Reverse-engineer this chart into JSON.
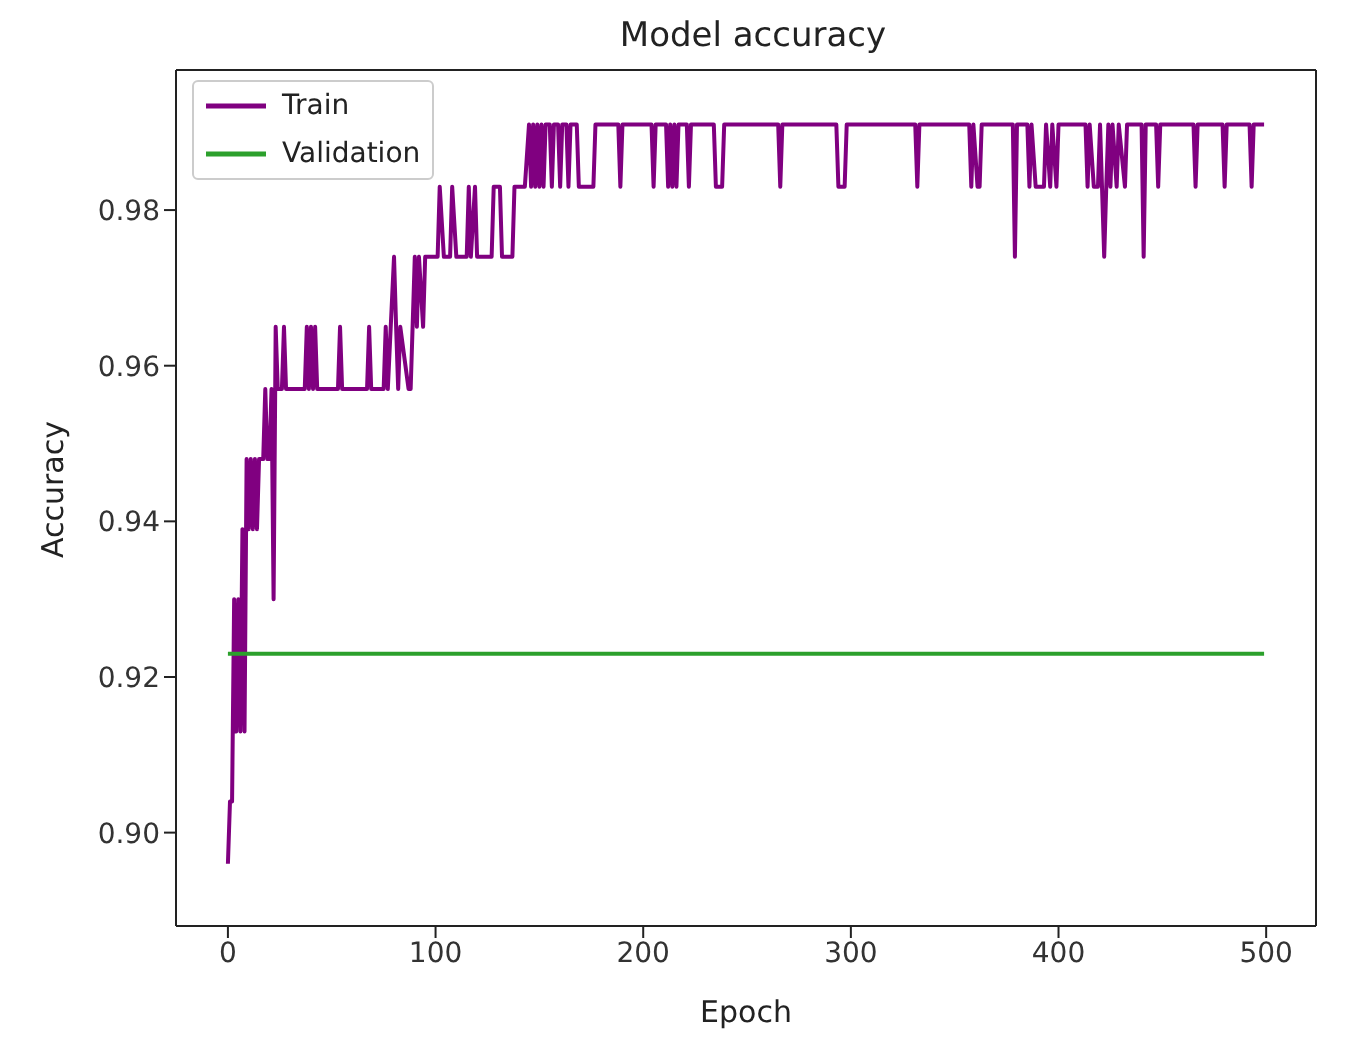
{
  "chart_data": {
    "type": "line",
    "title": "Model accuracy",
    "xlabel": "Epoch",
    "ylabel": "Accuracy",
    "xlim": [
      -25,
      524
    ],
    "xticks": [
      0,
      100,
      200,
      300,
      400,
      500
    ],
    "ylim": [
      0.888,
      0.998
    ],
    "yticks": [
      {
        "value": 0.9,
        "label": "0.90"
      },
      0.92,
      0.94,
      0.96,
      0.98
    ],
    "legend": "top left",
    "grid": false,
    "series": [
      {
        "name": "Train",
        "color": "#800080",
        "x": [
          0,
          1,
          2,
          3,
          4,
          5,
          6,
          7,
          8,
          9,
          10,
          11,
          12,
          13,
          14,
          15,
          17,
          18,
          19,
          20,
          21,
          22,
          23,
          24,
          26,
          27,
          28,
          37,
          38,
          39,
          40,
          41,
          42,
          43,
          53,
          54,
          55,
          67,
          68,
          69,
          75,
          76,
          77,
          80,
          81,
          82,
          83,
          87,
          88,
          90,
          91,
          92,
          94,
          95,
          98,
          100,
          101,
          102,
          104,
          107,
          108,
          110,
          115,
          116,
          117,
          119,
          120,
          127,
          128,
          131,
          132,
          137,
          138,
          143,
          145,
          146,
          147,
          148,
          149,
          150,
          151,
          152,
          153,
          155,
          156,
          157,
          159,
          160,
          161,
          163,
          164,
          165,
          168,
          169,
          176,
          177,
          188,
          189,
          190,
          204,
          205,
          206,
          211,
          212,
          213,
          214,
          215,
          216,
          217,
          221,
          222,
          223,
          234,
          235,
          238,
          239,
          265,
          266,
          267,
          293,
          294,
          297,
          298,
          331,
          332,
          333,
          357,
          358,
          359,
          361,
          362,
          363,
          378,
          379,
          380,
          385,
          386,
          387,
          389,
          393,
          394,
          396,
          397,
          399,
          400,
          413,
          414,
          415,
          417,
          419,
          420,
          422,
          423,
          424,
          425,
          426,
          428,
          429,
          432,
          433,
          440,
          441,
          442,
          447,
          448,
          449,
          465,
          466,
          467,
          479,
          480,
          481,
          492,
          493,
          494,
          499
        ],
        "values": [
          0.896,
          0.904,
          0.904,
          0.93,
          0.913,
          0.93,
          0.913,
          0.939,
          0.913,
          0.948,
          0.939,
          0.948,
          0.939,
          0.948,
          0.939,
          0.948,
          0.948,
          0.957,
          0.948,
          0.948,
          0.957,
          0.93,
          0.965,
          0.957,
          0.957,
          0.965,
          0.957,
          0.957,
          0.965,
          0.957,
          0.965,
          0.957,
          0.965,
          0.957,
          0.957,
          0.965,
          0.957,
          0.957,
          0.965,
          0.957,
          0.957,
          0.965,
          0.957,
          0.974,
          0.965,
          0.957,
          0.965,
          0.957,
          0.957,
          0.974,
          0.965,
          0.974,
          0.965,
          0.974,
          0.974,
          0.974,
          0.974,
          0.983,
          0.974,
          0.974,
          0.983,
          0.974,
          0.974,
          0.983,
          0.974,
          0.983,
          0.974,
          0.974,
          0.983,
          0.983,
          0.974,
          0.974,
          0.983,
          0.983,
          0.991,
          0.983,
          0.991,
          0.983,
          0.991,
          0.983,
          0.991,
          0.983,
          0.991,
          0.991,
          0.983,
          0.991,
          0.991,
          0.983,
          0.991,
          0.991,
          0.983,
          0.991,
          0.991,
          0.983,
          0.983,
          0.991,
          0.991,
          0.983,
          0.991,
          0.991,
          0.983,
          0.991,
          0.991,
          0.983,
          0.991,
          0.983,
          0.991,
          0.983,
          0.991,
          0.991,
          0.983,
          0.991,
          0.991,
          0.983,
          0.983,
          0.991,
          0.991,
          0.983,
          0.991,
          0.991,
          0.983,
          0.983,
          0.991,
          0.991,
          0.983,
          0.991,
          0.991,
          0.983,
          0.991,
          0.983,
          0.983,
          0.991,
          0.991,
          0.974,
          0.991,
          0.991,
          0.983,
          0.991,
          0.983,
          0.983,
          0.991,
          0.983,
          0.991,
          0.983,
          0.991,
          0.991,
          0.983,
          0.991,
          0.983,
          0.983,
          0.991,
          0.974,
          0.983,
          0.991,
          0.983,
          0.991,
          0.983,
          0.991,
          0.983,
          0.991,
          0.991,
          0.974,
          0.991,
          0.991,
          0.983,
          0.991,
          0.991,
          0.983,
          0.991,
          0.991,
          0.983,
          0.991,
          0.991,
          0.983,
          0.991,
          0.991
        ]
      },
      {
        "name": "Validation",
        "color": "#2ca02c",
        "x": [
          0,
          499
        ],
        "values": [
          0.923,
          0.923
        ]
      }
    ]
  }
}
